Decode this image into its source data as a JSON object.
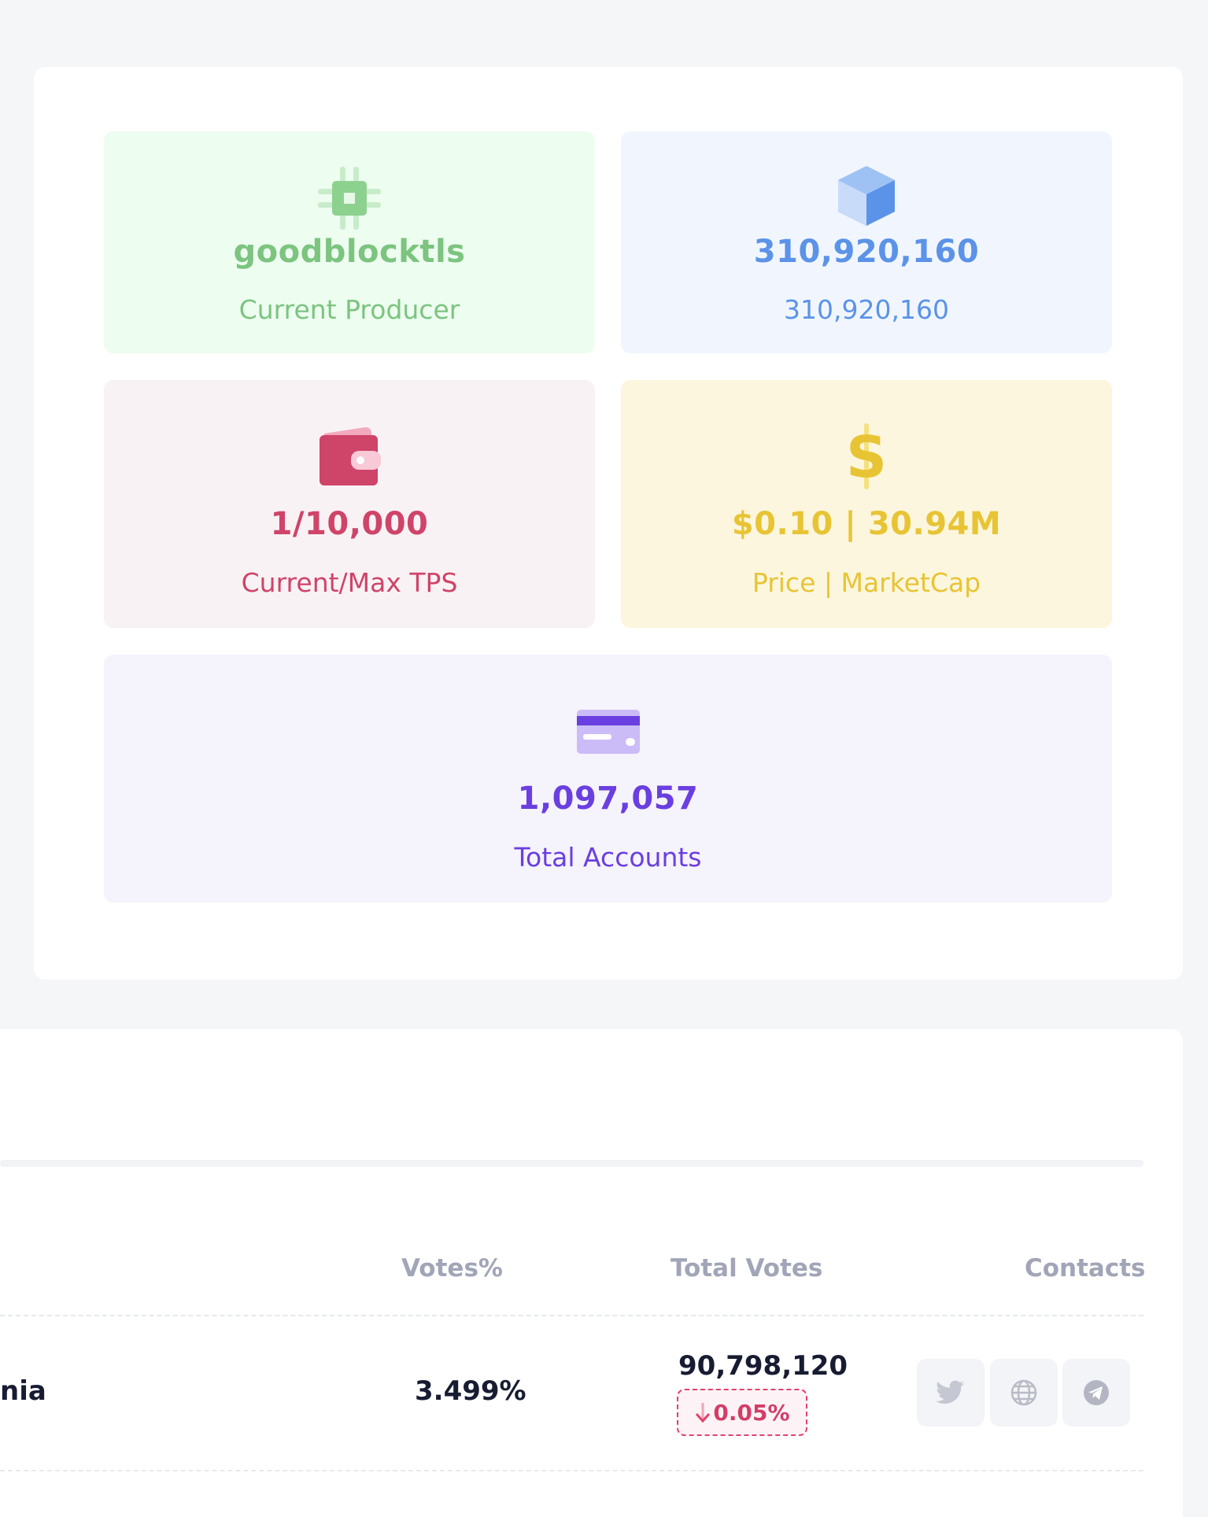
{
  "stats": {
    "producer": {
      "value": "goodblocktls",
      "label": "Current Producer",
      "icon": "chip-icon",
      "color": "#7cc47f"
    },
    "block": {
      "value": "310,920,160",
      "label": "310,920,160",
      "icon": "cube-icon",
      "color": "#5b93e8"
    },
    "tps": {
      "value": "1/10,000",
      "label": "Current/Max TPS",
      "icon": "wallet-icon",
      "color": "#cf4469"
    },
    "price": {
      "value": "$0.10 | 30.94M",
      "label": "Price | MarketCap",
      "icon": "dollar-icon",
      "color": "#e8c435"
    },
    "accounts": {
      "value": "1,097,057",
      "label": "Total Accounts",
      "icon": "credit-card-icon",
      "color": "#6a3fe0"
    }
  },
  "table": {
    "headers": {
      "votes_pct": "Votes%",
      "total_votes": "Total Votes",
      "contacts": "Contacts"
    },
    "rows": [
      {
        "name_fragment": "nia",
        "votes_pct": "3.499%",
        "total_votes": "90,798,120",
        "change": "0.05%",
        "contacts": [
          "twitter-icon",
          "globe-icon",
          "telegram-icon"
        ]
      }
    ]
  }
}
